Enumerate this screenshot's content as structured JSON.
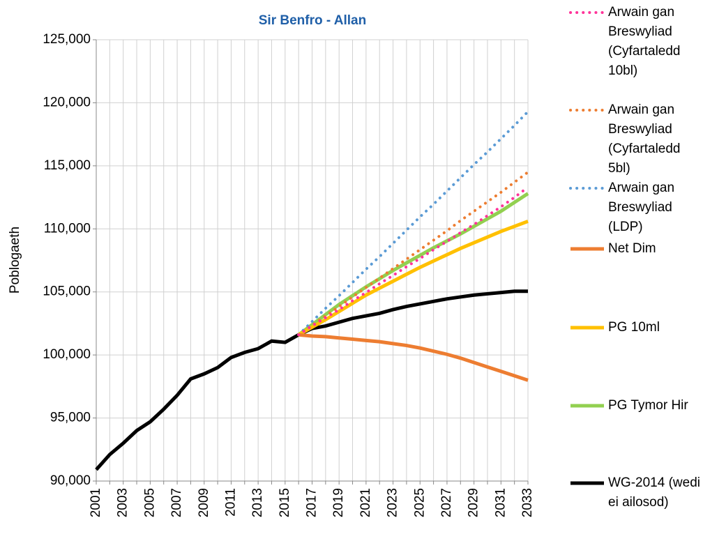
{
  "chart_data": {
    "type": "line",
    "title": "Sir Benfro - Allan",
    "y_label": "Poblogaeth",
    "categories": [
      "2001",
      null,
      "2003",
      null,
      "2005",
      null,
      "2007",
      null,
      "2009",
      null,
      "2011",
      null,
      "2013",
      null,
      "2015",
      null,
      "2017",
      null,
      "2019",
      null,
      "2021",
      null,
      "2023",
      null,
      "2025",
      null,
      "2027",
      null,
      "2029",
      null,
      "2031",
      null,
      "2033"
    ],
    "ylim": [
      90000,
      125000
    ],
    "yticks": [
      {
        "value": 90000,
        "label": "90,000"
      },
      {
        "value": 95000,
        "label": "95,000"
      },
      {
        "value": 100000,
        "label": "100,000"
      },
      {
        "value": 105000,
        "label": "105,000"
      },
      {
        "value": 110000,
        "label": "110,000"
      },
      {
        "value": 115000,
        "label": "115,000"
      },
      {
        "value": 120000,
        "label": "120,000"
      },
      {
        "value": 125000,
        "label": "125,000"
      }
    ],
    "grid": true,
    "legend": "right",
    "series": [
      {
        "name": "Arwain gan Breswyliad (Cyfartaledd 10bl)",
        "color": "#ff3399",
        "style": "dotted",
        "values": [
          null,
          null,
          null,
          null,
          null,
          null,
          null,
          null,
          null,
          null,
          null,
          null,
          null,
          null,
          null,
          101600,
          102300,
          102950,
          103600,
          104300,
          104950,
          105650,
          106300,
          107000,
          107650,
          108350,
          109000,
          109700,
          110350,
          111050,
          111750,
          112500,
          113300
        ]
      },
      {
        "name": "Arwain gan Breswyliad (Cyfartaledd 5bl)",
        "color": "#ed7d31",
        "style": "dotted",
        "values": [
          null,
          null,
          null,
          null,
          null,
          null,
          null,
          null,
          null,
          null,
          null,
          null,
          null,
          null,
          null,
          101600,
          102350,
          103100,
          103850,
          104600,
          105350,
          106100,
          106850,
          107600,
          108350,
          109100,
          109850,
          110650,
          111400,
          112150,
          112900,
          113700,
          114500
        ]
      },
      {
        "name": "Arwain gan Breswyliad (LDP)",
        "color": "#5b9bd5",
        "style": "dotted",
        "values": [
          null,
          null,
          null,
          null,
          null,
          null,
          null,
          null,
          null,
          null,
          null,
          null,
          null,
          null,
          null,
          101600,
          102650,
          103700,
          104700,
          105750,
          106800,
          107800,
          108850,
          109900,
          110950,
          111950,
          113000,
          114050,
          115100,
          116100,
          117150,
          118200,
          119300
        ]
      },
      {
        "name": "Net Dim",
        "color": "#ed7d31",
        "style": "solid",
        "values": [
          null,
          null,
          null,
          null,
          null,
          null,
          null,
          null,
          null,
          null,
          null,
          null,
          null,
          null,
          null,
          101600,
          101500,
          101450,
          101350,
          101250,
          101150,
          101050,
          100900,
          100750,
          100550,
          100300,
          100050,
          99750,
          99400,
          99050,
          98700,
          98350,
          98000
        ]
      },
      {
        "name": "PG 10ml",
        "color": "#ffc000",
        "style": "solid",
        "values": [
          null,
          null,
          null,
          null,
          null,
          null,
          null,
          null,
          null,
          null,
          null,
          null,
          null,
          null,
          null,
          101600,
          102200,
          102800,
          103450,
          104100,
          104750,
          105300,
          105850,
          106400,
          106950,
          107450,
          107950,
          108450,
          108900,
          109350,
          109800,
          110200,
          110600
        ]
      },
      {
        "name": "PG Tymor Hir",
        "color": "#92d050",
        "style": "solid",
        "values": [
          null,
          null,
          null,
          null,
          null,
          null,
          null,
          null,
          null,
          null,
          null,
          null,
          null,
          null,
          null,
          101600,
          102400,
          103200,
          104000,
          104700,
          105400,
          106050,
          106700,
          107300,
          107900,
          108500,
          109050,
          109600,
          110200,
          110800,
          111400,
          112100,
          112800
        ]
      },
      {
        "name": "WG-2014 (wedi ei ailosod)",
        "color": "#000000",
        "style": "solid",
        "values": [
          90900,
          92100,
          93000,
          94000,
          94700,
          95700,
          96800,
          98100,
          98500,
          99000,
          99800,
          100200,
          100500,
          101100,
          101000,
          101600,
          102100,
          102300,
          102600,
          102900,
          103100,
          103300,
          103600,
          103850,
          104050,
          104250,
          104450,
          104600,
          104750,
          104850,
          104950,
          105050,
          105050
        ]
      }
    ]
  }
}
